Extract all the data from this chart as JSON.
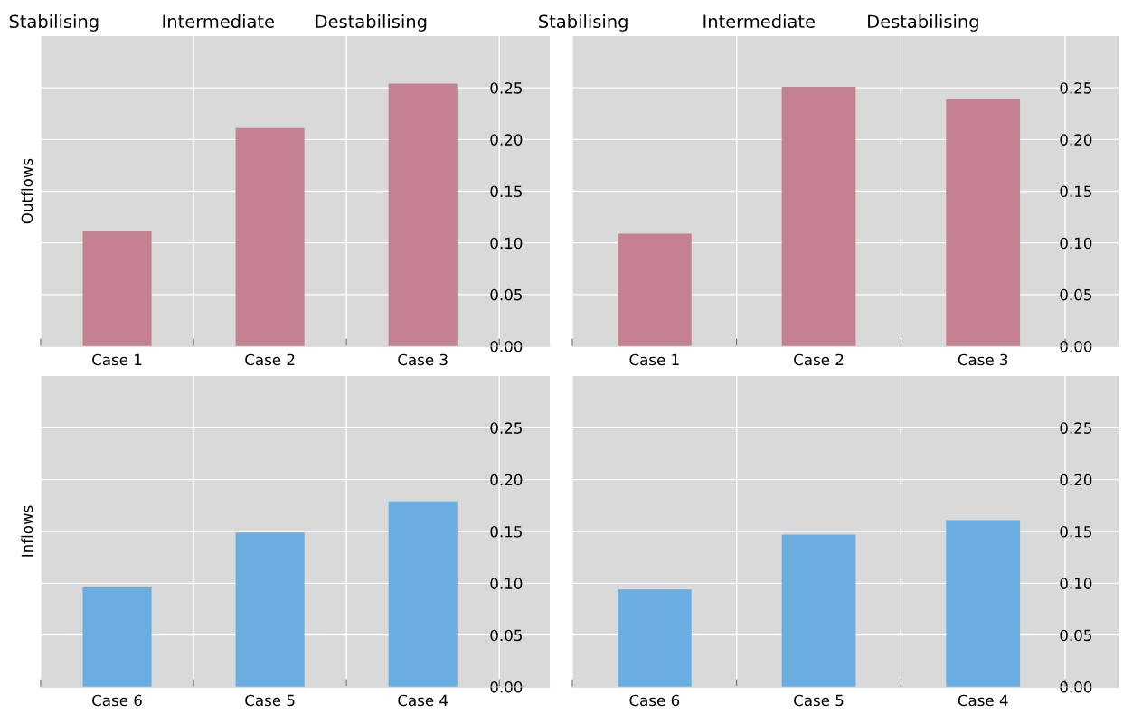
{
  "chart_data": [
    {
      "type": "bar",
      "ylabel": "Outflows",
      "categories": [
        "Case 1",
        "Case 2",
        "Case 3"
      ],
      "values": [
        0.111,
        0.211,
        0.254
      ],
      "color": "#c38090",
      "ylim": [
        0,
        0.3
      ],
      "yticks": [
        {
          "value": 0,
          "label": "0.00"
        },
        {
          "value": 0.05,
          "label": "0.05"
        },
        {
          "value": 0.1,
          "label": "0.10"
        },
        {
          "value": 0.15,
          "label": "0.15"
        },
        {
          "value": 0.2,
          "label": "0.20"
        },
        {
          "value": 0.25,
          "label": "0.25"
        }
      ],
      "grid": true,
      "annotations": [
        "Stabilising",
        "Intermediate",
        "Destabilising"
      ]
    },
    {
      "type": "bar",
      "categories": [
        "Case 1",
        "Case 2",
        "Case 3"
      ],
      "values": [
        0.109,
        0.251,
        0.239
      ],
      "color": "#c38090",
      "ylim": [
        0,
        0.3
      ],
      "yticks": [
        {
          "value": 0,
          "label": "0.00"
        },
        {
          "value": 0.05,
          "label": "0.05"
        },
        {
          "value": 0.1,
          "label": "0.10"
        },
        {
          "value": 0.15,
          "label": "0.15"
        },
        {
          "value": 0.2,
          "label": "0.20"
        },
        {
          "value": 0.25,
          "label": "0.25"
        }
      ],
      "grid": true,
      "annotations": [
        "Stabilising",
        "Intermediate",
        "Destabilising"
      ]
    },
    {
      "type": "bar",
      "ylabel": "Inflows",
      "categories": [
        "Case 6",
        "Case 5",
        "Case 4"
      ],
      "values": [
        0.096,
        0.149,
        0.179
      ],
      "color": "#6aade0",
      "ylim": [
        0,
        0.3
      ],
      "yticks": [
        {
          "value": 0,
          "label": "0.00"
        },
        {
          "value": 0.05,
          "label": "0.05"
        },
        {
          "value": 0.1,
          "label": "0.10"
        },
        {
          "value": 0.15,
          "label": "0.15"
        },
        {
          "value": 0.2,
          "label": "0.20"
        },
        {
          "value": 0.25,
          "label": "0.25"
        }
      ],
      "grid": true
    },
    {
      "type": "bar",
      "categories": [
        "Case 6",
        "Case 5",
        "Case 4"
      ],
      "values": [
        0.094,
        0.147,
        0.161
      ],
      "color": "#6aade0",
      "ylim": [
        0,
        0.3
      ],
      "yticks": [
        {
          "value": 0,
          "label": "0.00"
        },
        {
          "value": 0.05,
          "label": "0.05"
        },
        {
          "value": 0.1,
          "label": "0.10"
        },
        {
          "value": 0.15,
          "label": "0.15"
        },
        {
          "value": 0.2,
          "label": "0.20"
        },
        {
          "value": 0.25,
          "label": "0.25"
        }
      ],
      "grid": true
    }
  ]
}
